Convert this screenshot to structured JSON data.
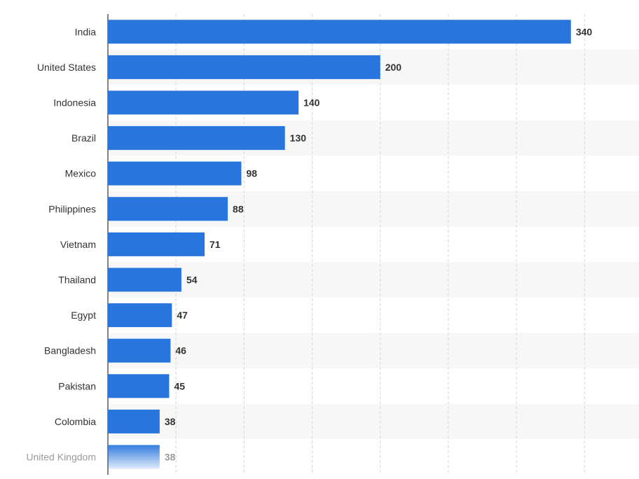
{
  "chart_data": {
    "type": "bar",
    "orientation": "horizontal",
    "title": "",
    "xlabel": "",
    "ylabel": "",
    "categories": [
      "India",
      "United States",
      "Indonesia",
      "Brazil",
      "Mexico",
      "Philippines",
      "Vietnam",
      "Thailand",
      "Egypt",
      "Bangladesh",
      "Pakistan",
      "Colombia",
      "United Kingdom"
    ],
    "values": [
      340,
      200,
      140,
      130,
      98,
      88,
      71,
      54,
      47,
      46,
      45,
      38,
      38
    ],
    "xlim": [
      0,
      390
    ],
    "grid": true,
    "bar_color": "#2876dd",
    "value_labels": true
  }
}
